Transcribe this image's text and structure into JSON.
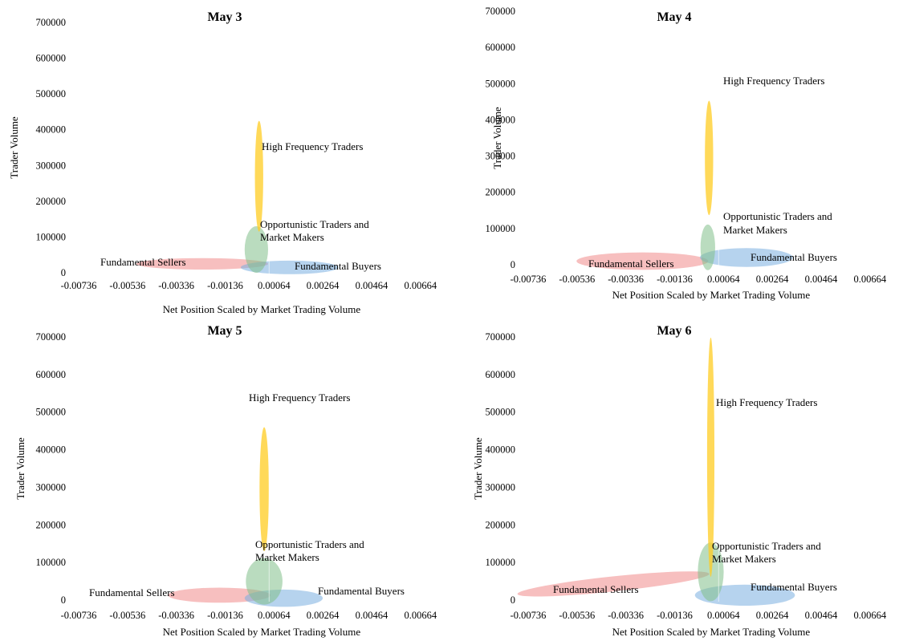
{
  "chart_data": [
    {
      "type": "bubble-ellipse",
      "title": "May 3",
      "xlabel": "Net Position Scaled by Market Trading Volume",
      "ylabel": "Trader Volume",
      "xlim": [
        -0.00736,
        0.00764
      ],
      "ylim": [
        0,
        700000
      ],
      "xticks": [
        "-0.00736",
        "-0.00536",
        "-0.00336",
        "-0.00136",
        "0.00064",
        "0.00264",
        "0.00464",
        "0.00664"
      ],
      "yticks": [
        "0",
        "100000",
        "200000",
        "300000",
        "400000",
        "500000",
        "600000",
        "700000"
      ],
      "series": [
        {
          "name": "Fundamental Sellers",
          "color": "#f08a8a",
          "cx": -0.0023,
          "cy": 25000,
          "rx": 0.0027,
          "ry": 16000,
          "rotate": 0
        },
        {
          "name": "Fundamental Buyers",
          "color": "#7aaee0",
          "cx": 0.00128,
          "cy": 15000,
          "rx": 0.002,
          "ry": 19000,
          "rotate": 0
        },
        {
          "name": "Opportunistic Traders and Market Makers",
          "color": "#82c08a",
          "cx": -8e-05,
          "cy": 65000,
          "rx": 0.00048,
          "ry": 65000,
          "rotate": 0
        },
        {
          "name": "High Frequency Traders",
          "color": "#ffcc22",
          "cx": 3e-05,
          "cy": 270000,
          "rx": 0.00017,
          "ry": 155000,
          "rotate": 0
        }
      ]
    },
    {
      "type": "bubble-ellipse",
      "title": "May 4",
      "xlabel": "Net Position Scaled by Market Trading Volume",
      "ylabel": "Trader Volume",
      "xlim": [
        -0.00736,
        0.00764
      ],
      "ylim": [
        0,
        700000
      ],
      "xticks": [
        "-0.00736",
        "-0.00536",
        "-0.00336",
        "-0.00136",
        "0.00064",
        "0.00264",
        "0.00464",
        "0.00664"
      ],
      "yticks": [
        "0",
        "100000",
        "200000",
        "300000",
        "400000",
        "500000",
        "600000",
        "700000"
      ],
      "series": [
        {
          "name": "Fundamental Sellers",
          "color": "#f08a8a",
          "cx": -0.00268,
          "cy": 10000,
          "rx": 0.0027,
          "ry": 24000,
          "rotate": 0
        },
        {
          "name": "Fundamental Buyers",
          "color": "#7aaee0",
          "cx": 0.00158,
          "cy": 20000,
          "rx": 0.0019,
          "ry": 26000,
          "rotate": 0
        },
        {
          "name": "Opportunistic Traders and Market Makers",
          "color": "#82c08a",
          "cx": 0.0,
          "cy": 48000,
          "rx": 0.0003,
          "ry": 63000,
          "rotate": 0
        },
        {
          "name": "High Frequency Traders",
          "color": "#ffcc22",
          "cx": 5e-05,
          "cy": 295000,
          "rx": 0.00017,
          "ry": 158000,
          "rotate": 0
        }
      ]
    },
    {
      "type": "bubble-ellipse",
      "title": "May 5",
      "xlabel": "Net Position Scaled by Market Trading Volume",
      "ylabel": "Trader Volume",
      "xlim": [
        -0.00736,
        0.00764
      ],
      "ylim": [
        0,
        700000
      ],
      "xticks": [
        "-0.00736",
        "-0.00536",
        "-0.00336",
        "-0.00136",
        "0.00064",
        "0.00264",
        "0.00464",
        "0.00664"
      ],
      "yticks": [
        "0",
        "100000",
        "200000",
        "300000",
        "400000",
        "500000",
        "600000",
        "700000"
      ],
      "series": [
        {
          "name": "Fundamental Sellers",
          "color": "#f08a8a",
          "cx": -0.0016,
          "cy": 13000,
          "rx": 0.0021,
          "ry": 20000,
          "rotate": 0
        },
        {
          "name": "Fundamental Buyers",
          "color": "#7aaee0",
          "cx": 0.00104,
          "cy": 5000,
          "rx": 0.0016,
          "ry": 23000,
          "rotate": 0
        },
        {
          "name": "Opportunistic Traders and Market Makers",
          "color": "#82c08a",
          "cx": 0.00024,
          "cy": 50000,
          "rx": 0.00075,
          "ry": 62000,
          "rotate": 0
        },
        {
          "name": "High Frequency Traders",
          "color": "#ffcc22",
          "cx": 0.00024,
          "cy": 295000,
          "rx": 0.00019,
          "ry": 165000,
          "rotate": 0
        }
      ]
    },
    {
      "type": "bubble-ellipse",
      "title": "May 6",
      "xlabel": "Net Position Scaled by Market Trading Volume",
      "ylabel": "Trader Volume",
      "xlim": [
        -0.00736,
        0.00764
      ],
      "ylim": [
        0,
        700000
      ],
      "xticks": [
        "-0.00736",
        "-0.00536",
        "-0.00336",
        "-0.00136",
        "0.00064",
        "0.00264",
        "0.00464",
        "0.00664"
      ],
      "yticks": [
        "0",
        "100000",
        "200000",
        "300000",
        "400000",
        "500000",
        "600000",
        "700000"
      ],
      "series": [
        {
          "name": "Fundamental Sellers",
          "color": "#f08a8a",
          "cx": -0.00387,
          "cy": 43000,
          "rx": 0.00395,
          "ry": 20000,
          "rotate": 6
        },
        {
          "name": "Fundamental Buyers",
          "color": "#7aaee0",
          "cx": 0.00152,
          "cy": 13000,
          "rx": 0.00205,
          "ry": 28000,
          "rotate": 0
        },
        {
          "name": "Opportunistic Traders and Market Makers",
          "color": "#82c08a",
          "cx": 0.00012,
          "cy": 75000,
          "rx": 0.00053,
          "ry": 78000,
          "rotate": 0
        },
        {
          "name": "High Frequency Traders",
          "color": "#ffcc22",
          "cx": 0.00012,
          "cy": 380000,
          "rx": 0.00015,
          "ry": 318000,
          "rotate": 0
        }
      ]
    }
  ],
  "labels": [
    {
      "sellers": "Fundamental Sellers",
      "buyers": "Fundamental Buyers",
      "opp1": "Opportunistic Traders and",
      "opp2": "Market Makers",
      "hft": "High Frequency Traders"
    },
    {
      "sellers": "Fundamental Sellers",
      "buyers": "Fundamental Buyers",
      "opp1": "Opportunistic Traders and",
      "opp2": "Market Makers",
      "hft": "High Frequency Traders"
    },
    {
      "sellers": "Fundamental Sellers",
      "buyers": "Fundamental Buyers",
      "opp1": "Opportunistic Traders and",
      "opp2": "Market Makers",
      "hft": "High Frequency Traders"
    },
    {
      "sellers": "Fundamental Sellers",
      "buyers": "Fundamental Buyers",
      "opp1": "Opportunistic Traders and",
      "opp2": "Market Makers",
      "hft": "High Frequency Traders"
    }
  ]
}
